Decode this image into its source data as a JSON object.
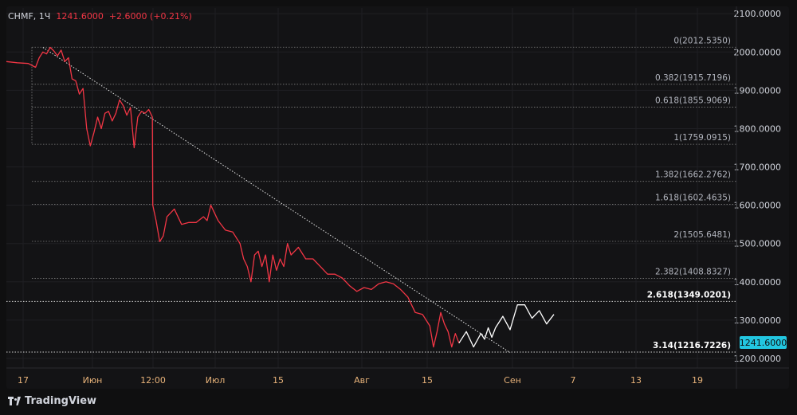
{
  "header": {
    "symbol": "CHMF",
    "timeframe": "1Ч",
    "last_price": "1241.6000",
    "change": "+2.6000 (+0.21%)"
  },
  "brand": {
    "name": "TradingView",
    "icon": "tradingview-logo-icon"
  },
  "colors": {
    "background": "#131315",
    "outer": "#0f0f10",
    "grid": "#1f1f23",
    "price_line": "#f23645",
    "projection_line": "#ffffff",
    "axis_text": "#d1d4dc",
    "x_tick_text": "#e8b37a",
    "last_price_badge": "#22c6e0"
  },
  "chart_data": {
    "type": "line",
    "title": "",
    "xlabel": "",
    "ylabel": "",
    "ylim": [
      1175,
      2115
    ],
    "y_ticks": [
      "2100.0000",
      "2000.0000",
      "1900.0000",
      "1800.0000",
      "1700.0000",
      "1600.0000",
      "1500.0000",
      "1400.0000",
      "1300.0000",
      "1200.0000"
    ],
    "x_ticks": [
      "17",
      "Июн",
      "12:00",
      "Июл",
      "15",
      "Авг",
      "15",
      "Сен",
      "7",
      "13",
      "19"
    ],
    "last_price_label": "1241.6000",
    "fib_levels": [
      {
        "label": "0(2012.5350)",
        "value": 2012.535,
        "emphasis": false
      },
      {
        "label": "0.382(1915.7196)",
        "value": 1915.7196,
        "emphasis": false
      },
      {
        "label": "0.618(1855.9069)",
        "value": 1855.9069,
        "emphasis": false
      },
      {
        "label": "1(1759.0915)",
        "value": 1759.0915,
        "emphasis": false
      },
      {
        "label": "1.382(1662.2762)",
        "value": 1662.2762,
        "emphasis": false
      },
      {
        "label": "1.618(1602.4635)",
        "value": 1602.4635,
        "emphasis": false
      },
      {
        "label": "2(1505.6481)",
        "value": 1505.6481,
        "emphasis": false
      },
      {
        "label": "2.382(1408.8327)",
        "value": 1408.8327,
        "emphasis": false
      },
      {
        "label": "2.618(1349.0201)",
        "value": 1349.0201,
        "emphasis": true
      },
      {
        "label": "3.14(1216.7226)",
        "value": 1216.7226,
        "emphasis": true
      }
    ],
    "trendline": {
      "start": [
        0.05,
        2012
      ],
      "end": [
        0.69,
        1215
      ]
    },
    "series": [
      {
        "role": "price",
        "points": [
          [
            0,
            1975
          ],
          [
            0.015,
            1972
          ],
          [
            0.03,
            1970
          ],
          [
            0.04,
            1960
          ],
          [
            0.045,
            1985
          ],
          [
            0.05,
            2000
          ],
          [
            0.055,
            1995
          ],
          [
            0.06,
            2012
          ],
          [
            0.065,
            2003
          ],
          [
            0.07,
            1990
          ],
          [
            0.075,
            2005
          ],
          [
            0.08,
            1975
          ],
          [
            0.085,
            1985
          ],
          [
            0.09,
            1930
          ],
          [
            0.095,
            1925
          ],
          [
            0.1,
            1890
          ],
          [
            0.105,
            1905
          ],
          [
            0.11,
            1800
          ],
          [
            0.115,
            1755
          ],
          [
            0.12,
            1790
          ],
          [
            0.125,
            1830
          ],
          [
            0.13,
            1800
          ],
          [
            0.135,
            1840
          ],
          [
            0.14,
            1845
          ],
          [
            0.145,
            1820
          ],
          [
            0.15,
            1840
          ],
          [
            0.155,
            1875
          ],
          [
            0.16,
            1860
          ],
          [
            0.165,
            1835
          ],
          [
            0.17,
            1855
          ],
          [
            0.175,
            1750
          ],
          [
            0.18,
            1830
          ],
          [
            0.185,
            1845
          ],
          [
            0.19,
            1840
          ],
          [
            0.195,
            1850
          ],
          [
            0.2,
            1830
          ],
          [
            0.2005,
            1600
          ],
          [
            0.205,
            1560
          ],
          [
            0.21,
            1505
          ],
          [
            0.215,
            1520
          ],
          [
            0.22,
            1570
          ],
          [
            0.23,
            1590
          ],
          [
            0.24,
            1550
          ],
          [
            0.25,
            1555
          ],
          [
            0.26,
            1555
          ],
          [
            0.27,
            1570
          ],
          [
            0.275,
            1560
          ],
          [
            0.28,
            1600
          ],
          [
            0.285,
            1580
          ],
          [
            0.29,
            1560
          ],
          [
            0.3,
            1535
          ],
          [
            0.31,
            1530
          ],
          [
            0.32,
            1500
          ],
          [
            0.325,
            1460
          ],
          [
            0.33,
            1440
          ],
          [
            0.335,
            1400
          ],
          [
            0.34,
            1470
          ],
          [
            0.345,
            1480
          ],
          [
            0.35,
            1440
          ],
          [
            0.355,
            1470
          ],
          [
            0.36,
            1400
          ],
          [
            0.365,
            1470
          ],
          [
            0.37,
            1430
          ],
          [
            0.375,
            1460
          ],
          [
            0.38,
            1440
          ],
          [
            0.385,
            1500
          ],
          [
            0.39,
            1470
          ],
          [
            0.4,
            1490
          ],
          [
            0.41,
            1460
          ],
          [
            0.42,
            1460
          ],
          [
            0.43,
            1440
          ],
          [
            0.44,
            1420
          ],
          [
            0.45,
            1420
          ],
          [
            0.46,
            1410
          ],
          [
            0.47,
            1390
          ],
          [
            0.48,
            1375
          ],
          [
            0.49,
            1385
          ],
          [
            0.5,
            1380
          ],
          [
            0.51,
            1395
          ],
          [
            0.52,
            1400
          ],
          [
            0.53,
            1395
          ],
          [
            0.54,
            1380
          ],
          [
            0.55,
            1360
          ],
          [
            0.56,
            1320
          ],
          [
            0.57,
            1315
          ],
          [
            0.575,
            1300
          ],
          [
            0.58,
            1285
          ],
          [
            0.585,
            1230
          ],
          [
            0.59,
            1270
          ],
          [
            0.595,
            1320
          ],
          [
            0.6,
            1290
          ],
          [
            0.605,
            1270
          ],
          [
            0.61,
            1230
          ],
          [
            0.615,
            1265
          ],
          [
            0.62,
            1240
          ]
        ]
      },
      {
        "role": "projection",
        "points": [
          [
            0.62,
            1240
          ],
          [
            0.63,
            1270
          ],
          [
            0.64,
            1230
          ],
          [
            0.65,
            1265
          ],
          [
            0.655,
            1250
          ],
          [
            0.66,
            1280
          ],
          [
            0.665,
            1255
          ],
          [
            0.67,
            1280
          ],
          [
            0.68,
            1310
          ],
          [
            0.69,
            1275
          ],
          [
            0.7,
            1340
          ],
          [
            0.71,
            1340
          ],
          [
            0.72,
            1305
          ],
          [
            0.73,
            1325
          ],
          [
            0.74,
            1290
          ],
          [
            0.75,
            1315
          ]
        ]
      }
    ]
  }
}
